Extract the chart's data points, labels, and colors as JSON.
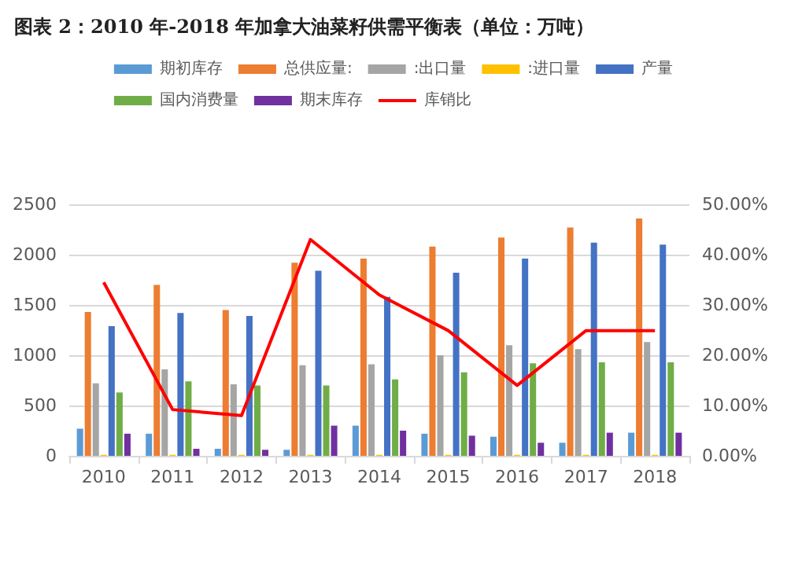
{
  "chart_data": {
    "type": "bar",
    "title": "图表 2：2010 年-2018 年加拿大油菜籽供需平衡表（单位：万吨）",
    "categories": [
      "2010",
      "2011",
      "2012",
      "2013",
      "2014",
      "2015",
      "2016",
      "2017",
      "2018"
    ],
    "series": [
      {
        "name": "期初库存",
        "color": "#5b9bd5",
        "values": [
          270,
          220,
          70,
          60,
          300,
          220,
          190,
          130,
          230
        ]
      },
      {
        "name": "总供应量:",
        "color": "#ed7d31",
        "values": [
          1430,
          1700,
          1450,
          1920,
          1960,
          2080,
          2170,
          2270,
          2360
        ]
      },
      {
        "name": ":出口量",
        "color": "#a5a5a5",
        "values": [
          720,
          860,
          710,
          900,
          910,
          1000,
          1100,
          1060,
          1130
        ]
      },
      {
        "name": ":进口量",
        "color": "#ffc000",
        "values": [
          10,
          10,
          10,
          10,
          10,
          10,
          10,
          10,
          10
        ]
      },
      {
        "name": "产量",
        "color": "#4472c4",
        "values": [
          1290,
          1420,
          1390,
          1840,
          1580,
          1820,
          1960,
          2120,
          2100
        ]
      },
      {
        "name": "国内消费量",
        "color": "#70ad47",
        "values": [
          630,
          740,
          700,
          700,
          760,
          830,
          920,
          930,
          930
        ]
      },
      {
        "name": "期末库存",
        "color": "#7030a0",
        "values": [
          220,
          70,
          60,
          300,
          250,
          200,
          130,
          230,
          230
        ]
      },
      {
        "name": "库销比",
        "type": "line",
        "axis": "y2",
        "color": "#ff0000",
        "values": [
          34.5,
          9.2,
          8.0,
          43,
          32,
          24.9,
          14.0,
          24.9,
          24.9
        ]
      }
    ],
    "ylim": [
      0,
      2500
    ],
    "yticks": [
      0,
      500,
      1000,
      1500,
      2000,
      2500
    ],
    "y2lim": [
      0,
      50
    ],
    "y2ticks": [
      {
        "value": 0,
        "label": "0.00%"
      },
      {
        "value": 10,
        "label": "10.00%"
      },
      {
        "value": 20,
        "label": "20.00%"
      },
      {
        "value": 30,
        "label": "30.00%"
      },
      {
        "value": 40,
        "label": "40.00%"
      },
      {
        "value": 50,
        "label": "50.00%"
      }
    ],
    "grid": "y",
    "legend": "top",
    "marker": "none",
    "line_style": "solid"
  }
}
